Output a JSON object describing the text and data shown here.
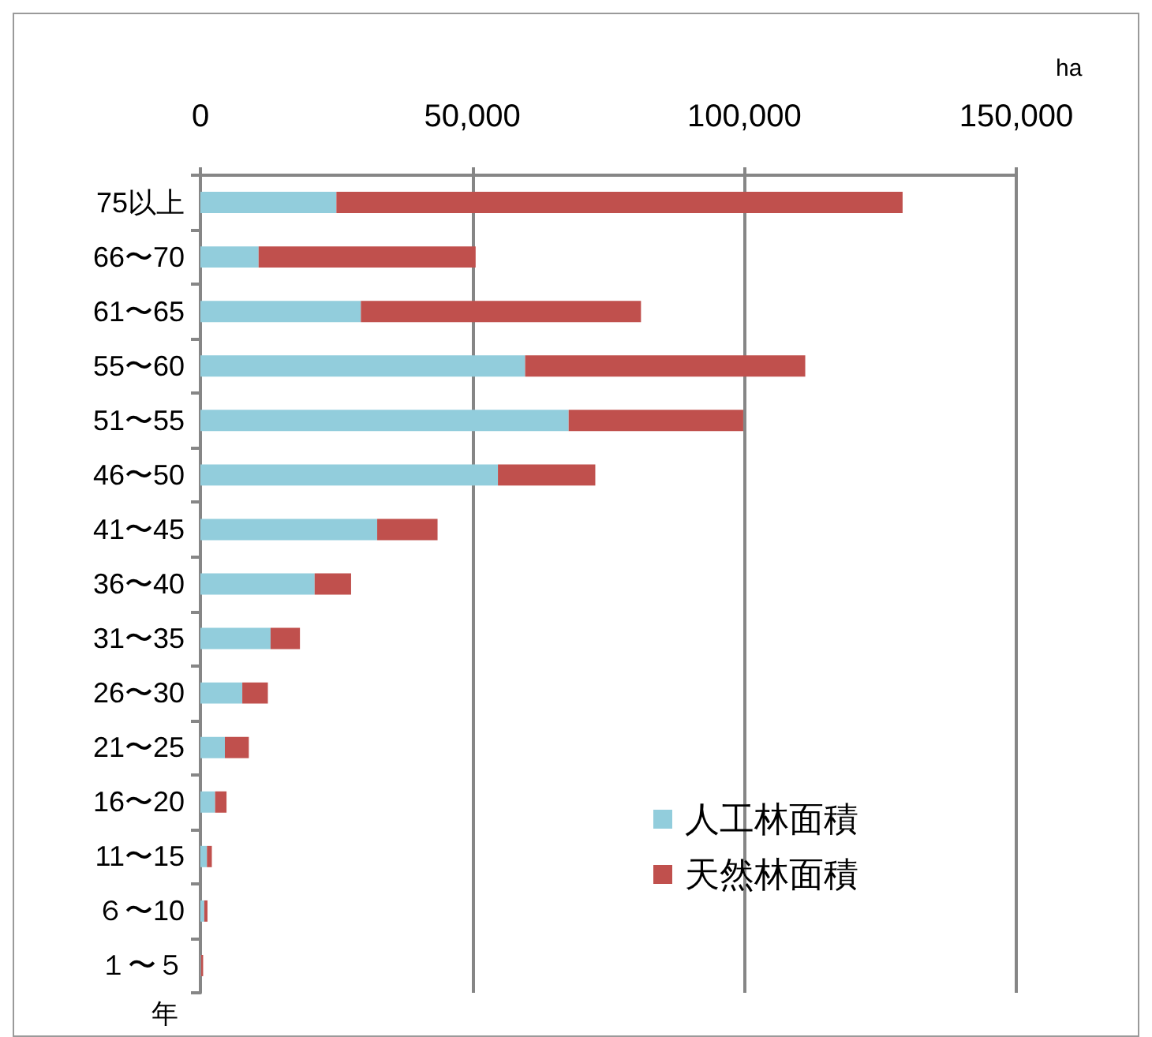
{
  "chart_data": {
    "type": "bar",
    "orientation": "horizontal",
    "stacked": true,
    "categories": [
      "75以上",
      "66〜70",
      "61〜65",
      "55〜60",
      "51〜55",
      "46〜50",
      "41〜45",
      "36〜40",
      "31〜35",
      "26〜30",
      "21〜25",
      "16〜20",
      "11〜15",
      "６〜10",
      "１〜５"
    ],
    "series": [
      {
        "name": "人工林面積",
        "color": "#92cddc",
        "values": [
          25000,
          10700,
          29500,
          59700,
          67700,
          54700,
          32500,
          21000,
          12900,
          7700,
          4500,
          2700,
          1200,
          700,
          100
        ]
      },
      {
        "name": "天然林面積",
        "color": "#c0504d",
        "values": [
          104100,
          39900,
          51500,
          51500,
          32100,
          17900,
          11100,
          6700,
          5400,
          4700,
          4400,
          2100,
          900,
          600,
          400
        ]
      }
    ],
    "xlabel": "ha",
    "ylabel": "年",
    "xlim": [
      0,
      150000
    ],
    "xticks": [
      0,
      {
        "value": 50000,
        "label": "50,000"
      },
      {
        "value": 100000,
        "label": "100,000"
      },
      {
        "value": 150000,
        "label": "150,000"
      }
    ],
    "grid": "x",
    "legend": "bottom right"
  }
}
